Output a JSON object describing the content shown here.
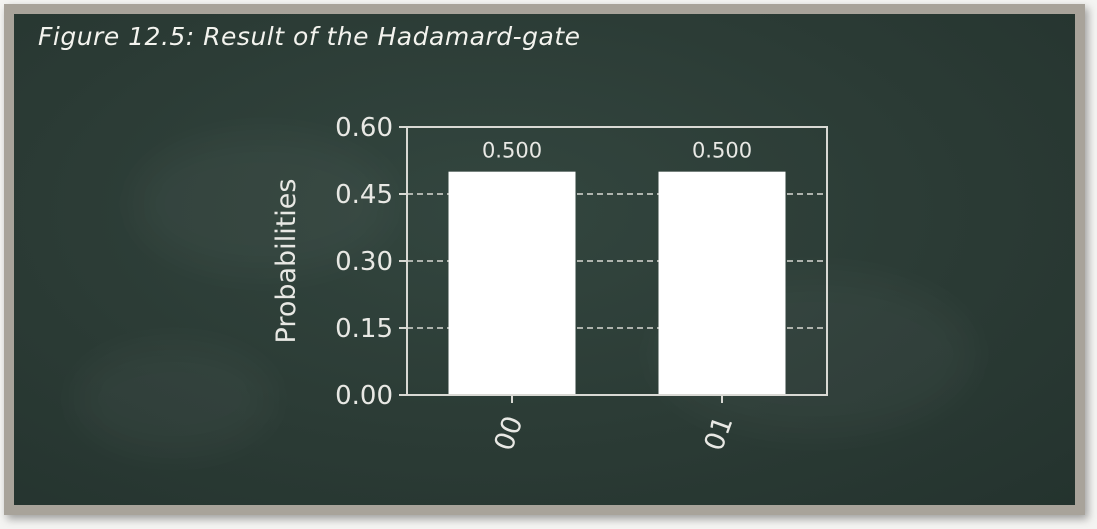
{
  "figure": {
    "caption": "Figure 12.5: Result of the Hadamard-gate"
  },
  "colors": {
    "board": "#2b3b35",
    "frame": "#a8a39a",
    "bar": "#ffffff",
    "axis": "#d9d9d4"
  },
  "chart_data": {
    "type": "bar",
    "categories": [
      "00",
      "01"
    ],
    "values": [
      0.5,
      0.5
    ],
    "value_labels": [
      "0.500",
      "0.500"
    ],
    "ylabel": "Probabilities",
    "ylim": [
      0,
      0.6
    ],
    "yticks": [
      0.0,
      0.15,
      0.3,
      0.45,
      0.6
    ],
    "ytick_labels": [
      "0.00",
      "0.15",
      "0.30",
      "0.45",
      "0.60"
    ],
    "grid": "horizontal dashed",
    "xtick_rotation": "70 degrees"
  }
}
